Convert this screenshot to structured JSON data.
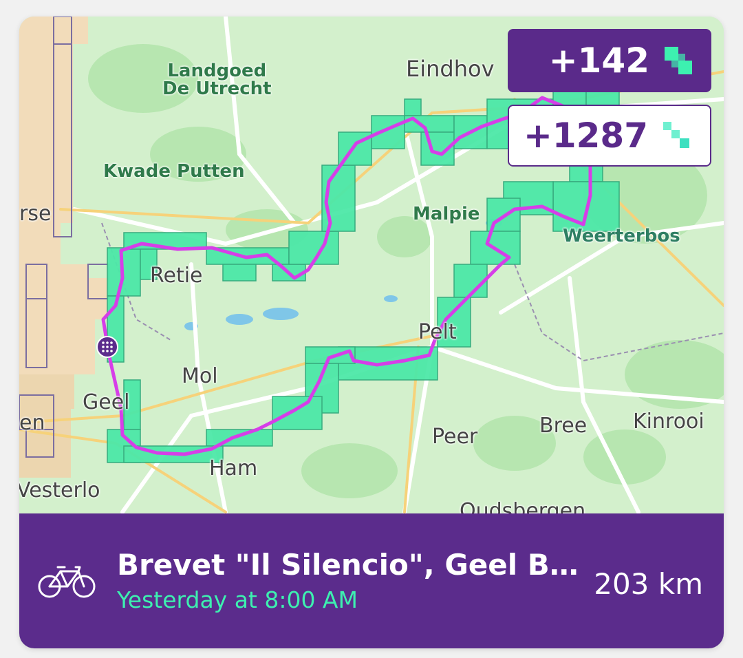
{
  "map": {
    "place_labels": [
      {
        "id": "eindhoven",
        "text": "Eindhov",
        "style": "town"
      },
      {
        "id": "landgoed",
        "text": "Landgoed\nDe Utrecht",
        "style": "green"
      },
      {
        "id": "kwade-putten",
        "text": "Kwade Putten",
        "style": "green"
      },
      {
        "id": "rse",
        "text": "rse",
        "style": "town"
      },
      {
        "id": "malpie",
        "text": "Malpie",
        "style": "green"
      },
      {
        "id": "weerterbos",
        "text": "Weerterbos",
        "style": "teal"
      },
      {
        "id": "retie",
        "text": "Retie",
        "style": "town"
      },
      {
        "id": "pelt",
        "text": "Pelt",
        "style": "town"
      },
      {
        "id": "mol",
        "text": "Mol",
        "style": "town"
      },
      {
        "id": "geel",
        "text": "Geel",
        "style": "town"
      },
      {
        "id": "en",
        "text": "en",
        "style": "town"
      },
      {
        "id": "kinrooi",
        "text": "Kinrooi",
        "style": "town"
      },
      {
        "id": "bree",
        "text": "Bree",
        "style": "town"
      },
      {
        "id": "peer",
        "text": "Peer",
        "style": "town"
      },
      {
        "id": "ham",
        "text": "Ham",
        "style": "town"
      },
      {
        "id": "westerlo",
        "text": "Vesterlo",
        "style": "town"
      },
      {
        "id": "oudsbergen",
        "text": "Oudsbergen",
        "style": "town"
      }
    ],
    "route_color": "#d63ee8",
    "tile_color": "#4de8a8",
    "start_marker_color": "#5b2c8c"
  },
  "stats": {
    "new_tiles": "+142",
    "total_tiles": "+1287"
  },
  "activity": {
    "title": "Brevet \"Il Silencio\", Geel B…",
    "time": "Yesterday at 8:00 AM",
    "distance": "203 km",
    "type_icon": "bike-icon"
  },
  "colors": {
    "footer_bg": "#5b2c8c",
    "accent_green": "#3df0b0",
    "badge_purple": "#5a2a8a"
  }
}
